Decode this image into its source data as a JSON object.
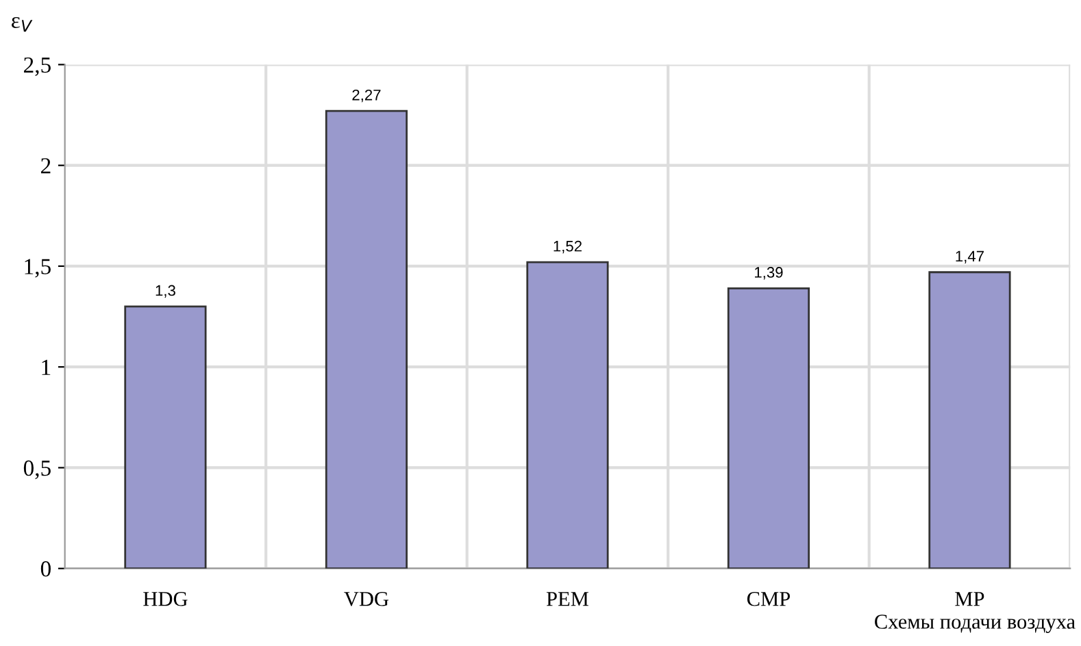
{
  "chart_data": {
    "type": "bar",
    "ylabel": "ε$_{V}$",
    "xlabel": "Схемы подачи воздуха",
    "categories": [
      "HDG",
      "VDG",
      "PEM",
      "CMP",
      "MP"
    ],
    "values": [
      1.3,
      2.27,
      1.52,
      1.39,
      1.47
    ],
    "value_labels": [
      "1,3",
      "2,27",
      "1,52",
      "1,39",
      "1,47"
    ],
    "color": "#9999cc",
    "ylim": [
      0,
      2.5
    ],
    "yticks": [
      0,
      {
        "value": 0.5,
        "label": "0,5"
      },
      1,
      {
        "value": 1.5,
        "label": "1,5"
      },
      2,
      {
        "value": 2.5,
        "label": "2,5"
      }
    ],
    "grid": true,
    "legend": false
  }
}
